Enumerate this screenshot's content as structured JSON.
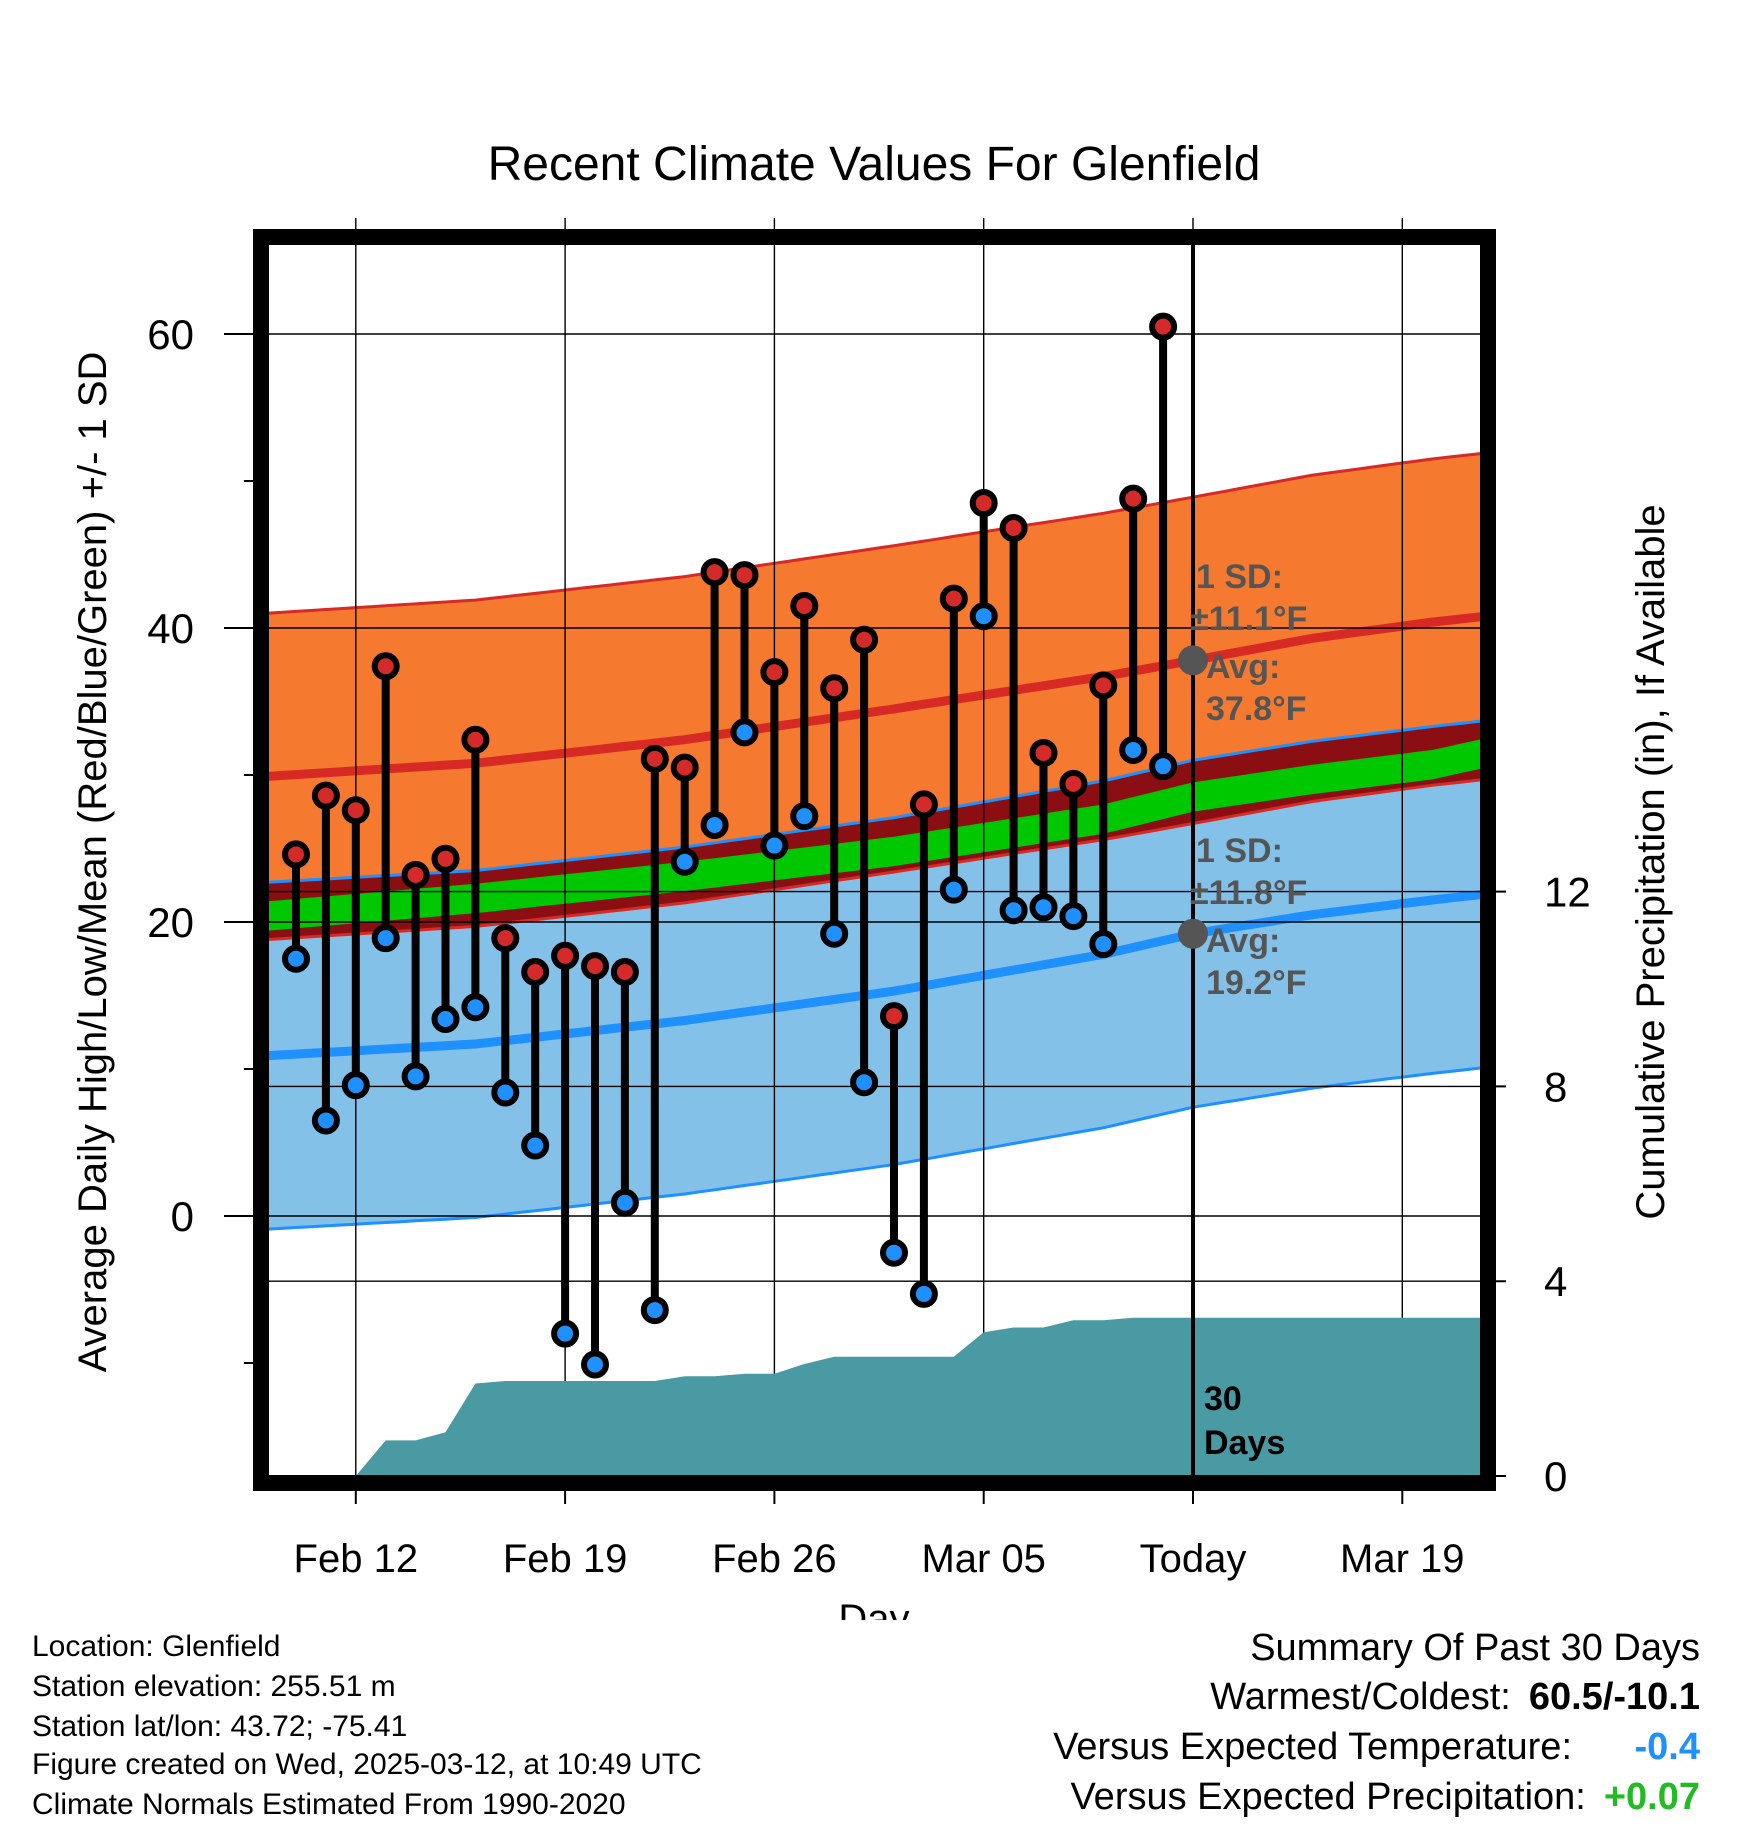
{
  "chart_data": {
    "type": "line",
    "title": "Recent Climate Values For Glenfield",
    "xlabel": "Day",
    "ylabel": "Average Daily High/Low/Mean (Red/Blue/Green) +/- 1 SD",
    "y2label": "Cumulative Precipitation (in), If Available",
    "x_day_range": [
      -31,
      12
    ],
    "ylim": [
      -18,
      66
    ],
    "y_ticks": [
      0,
      20,
      40,
      60
    ],
    "y2lim": [
      0,
      24.18
    ],
    "y2_ticks": [
      0,
      4,
      8,
      12
    ],
    "x_ticks": [
      {
        "day": -28,
        "label": "Feb 12"
      },
      {
        "day": -21,
        "label": "Feb 19"
      },
      {
        "day": -14,
        "label": "Feb 26"
      },
      {
        "day": -7,
        "label": "Mar 05"
      },
      {
        "day": 0,
        "label": "Today"
      },
      {
        "day": 7,
        "label": "Mar 19"
      }
    ],
    "grid": true,
    "today_day": 0,
    "today_label": "30 Days",
    "daily": {
      "days": [
        -30,
        -29,
        -28,
        -27,
        -26,
        -25,
        -24,
        -23,
        -22,
        -21,
        -20,
        -19,
        -18,
        -17,
        -16,
        -15,
        -14,
        -13,
        -12,
        -11,
        -10,
        -9,
        -8,
        -7,
        -6,
        -5,
        -4,
        -3,
        -2,
        -1
      ],
      "high": [
        24.6,
        28.6,
        27.6,
        37.4,
        23.2,
        24.3,
        32.4,
        18.9,
        16.6,
        17.7,
        17.0,
        16.6,
        31.1,
        30.5,
        43.8,
        43.6,
        37.0,
        41.5,
        35.9,
        39.2,
        13.6,
        28.0,
        42.0,
        48.5,
        46.8,
        31.5,
        29.4,
        36.1,
        48.8,
        60.5
      ],
      "low": [
        17.5,
        6.5,
        8.9,
        18.9,
        9.5,
        13.4,
        14.2,
        8.4,
        4.8,
        -8.0,
        -10.1,
        0.9,
        -6.4,
        24.1,
        26.6,
        32.9,
        25.2,
        27.2,
        19.2,
        9.1,
        -2.5,
        -5.3,
        22.2,
        40.8,
        20.8,
        21.0,
        20.4,
        18.5,
        31.7,
        30.6
      ]
    },
    "normals": {
      "days": [
        -31,
        -24,
        -17,
        -10,
        -3,
        0,
        4,
        8,
        12
      ],
      "high_mean": [
        29.9,
        30.8,
        32.4,
        34.5,
        36.7,
        37.8,
        39.3,
        40.4,
        41.3
      ],
      "low_mean": [
        10.9,
        11.7,
        13.3,
        15.3,
        17.8,
        19.2,
        20.5,
        21.5,
        22.4
      ],
      "mean": [
        20.4,
        21.6,
        23.1,
        24.8,
        27.0,
        28.5,
        29.7,
        30.7,
        32.5
      ],
      "high_sd": 11.1,
      "low_sd": 11.8
    },
    "precip": {
      "days": [
        -31,
        -30,
        -29,
        -28,
        -27,
        -26,
        -25,
        -24,
        -23,
        -22,
        -21,
        -20,
        -19,
        -18,
        -17,
        -16,
        -15,
        -14,
        -13,
        -12,
        -11,
        -10,
        -9,
        -8,
        -7,
        -6,
        -5,
        -4,
        -3,
        -2,
        -1,
        0,
        12
      ],
      "cum": [
        0,
        0,
        0,
        0,
        0.73,
        0.73,
        0.9,
        1.9,
        1.95,
        1.95,
        1.95,
        1.95,
        1.95,
        1.95,
        2.05,
        2.05,
        2.1,
        2.1,
        2.3,
        2.45,
        2.45,
        2.45,
        2.45,
        2.45,
        2.95,
        3.05,
        3.05,
        3.2,
        3.2,
        3.25,
        3.25,
        3.25,
        3.25
      ]
    },
    "colors": {
      "high_band": "#f57a30",
      "low_band": "#83c1e8",
      "overlap": "#8b0f12",
      "mean_band": "#00c800",
      "high_line": "#d72a25",
      "low_line": "#1e90ff",
      "precip": "#4a9aa3",
      "high_marker": "#d42a29",
      "low_marker": "#1e90ff",
      "annotation": "#555555"
    }
  },
  "annotations": {
    "high_sd_label": "1 SD:",
    "high_sd_value": "±11.1°F",
    "high_avg_label": "Avg:",
    "high_avg_value": "37.8°F",
    "low_sd_label": "1 SD:",
    "low_sd_value": "±11.8°F",
    "low_avg_label": "Avg:",
    "low_avg_value": "19.2°F",
    "today_days_line1": "30",
    "today_days_line2": "Days"
  },
  "meta": {
    "location": "Location: Glenfield",
    "elevation": "Station elevation: 255.51 m",
    "latlon": "Station lat/lon: 43.72; -75.41",
    "created": "Figure created on Wed, 2025-03-12, at 10:49 UTC",
    "normals_source": "Climate Normals Estimated From 1990-2020"
  },
  "summary": {
    "title": "Summary Of Past 30 Days",
    "warmest_coldest_label": "Warmest/Coldest:",
    "warmest_coldest_value": "60.5/-10.1",
    "temp_label": "Versus Expected Temperature:",
    "temp_value": "-0.4",
    "precip_label": "Versus Expected Precipitation:",
    "precip_value": "+0.07",
    "temp_color": "#1e90ff",
    "precip_color": "#22bb22"
  }
}
